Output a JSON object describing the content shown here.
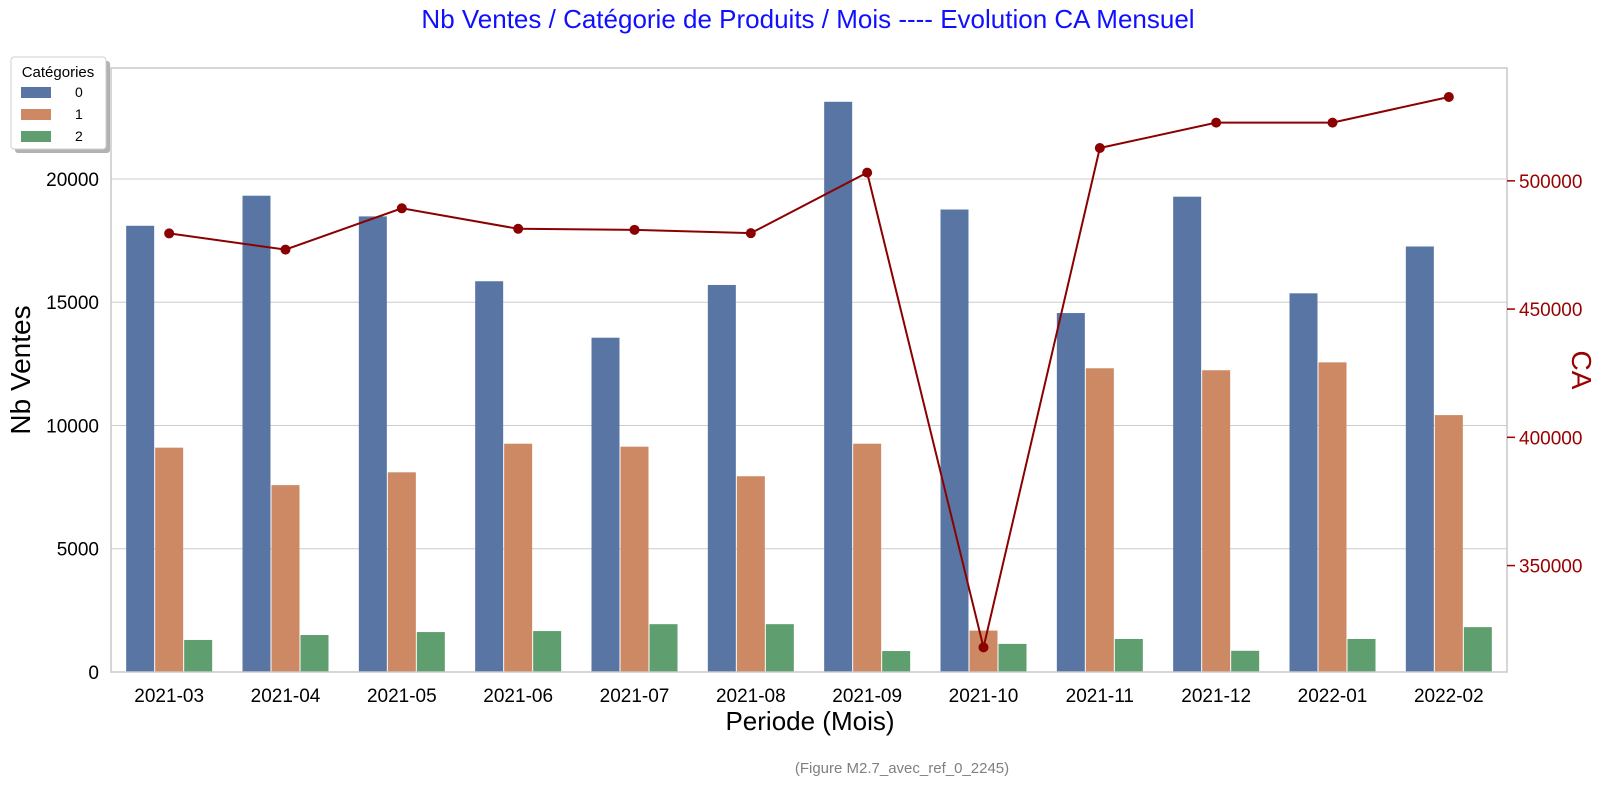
{
  "chart_data": {
    "type": "bar",
    "title": "Nb Ventes / Catégorie de Produits / Mois  ----  Evolution CA Mensuel",
    "xlabel": "Periode (Mois)",
    "ylabel": "Nb Ventes",
    "y2label": "CA",
    "caption": "(Figure M2.7_avec_ref_0_2245)",
    "categories": [
      "2021-03",
      "2021-04",
      "2021-05",
      "2021-06",
      "2021-07",
      "2021-08",
      "2021-09",
      "2021-10",
      "2021-11",
      "2021-12",
      "2022-01",
      "2022-02"
    ],
    "ylim": [
      0,
      24500
    ],
    "y2lim": [
      308500,
      544000
    ],
    "yticks": [
      0,
      5000,
      10000,
      15000,
      20000
    ],
    "y2ticks": [
      350000,
      400000,
      450000,
      500000
    ],
    "legend": {
      "title": "Catégories",
      "placement": "top-left"
    },
    "series": [
      {
        "name": "0",
        "color": "#5875a4",
        "values": [
          18100,
          19320,
          18480,
          15850,
          13560,
          15700,
          23130,
          18760,
          14560,
          19280,
          15360,
          17260
        ]
      },
      {
        "name": "1",
        "color": "#cc8963",
        "values": [
          9100,
          7580,
          8100,
          9260,
          9140,
          7940,
          9260,
          1680,
          12320,
          12240,
          12560,
          10420
        ]
      },
      {
        "name": "2",
        "color": "#5f9e6e",
        "values": [
          1300,
          1500,
          1620,
          1660,
          1940,
          1940,
          850,
          1140,
          1340,
          860,
          1340,
          1820
        ]
      }
    ],
    "line": {
      "name": "CA",
      "color": "#8b0000",
      "values": [
        479500,
        473200,
        489300,
        481300,
        480900,
        479600,
        503200,
        318100,
        512800,
        522700,
        522700,
        532700
      ]
    }
  }
}
